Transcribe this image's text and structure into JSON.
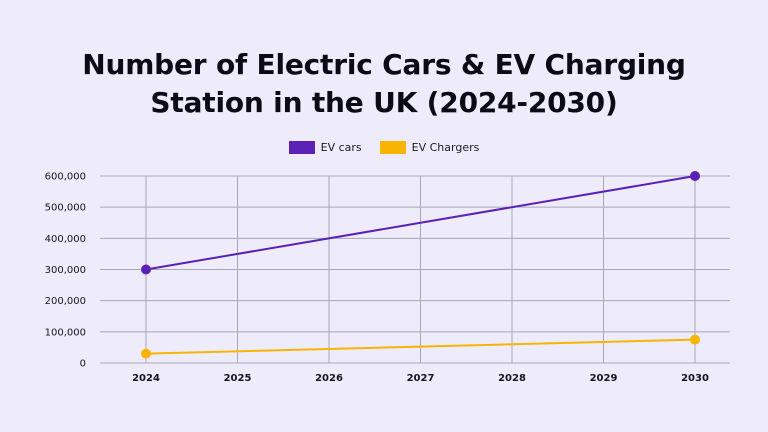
{
  "chart_data": {
    "type": "line",
    "title_lines": [
      "Number of Electric Cars & EV Charging",
      "Station in the UK (2024-2030)"
    ],
    "x": [
      "2024",
      "2025",
      "2026",
      "2027",
      "2028",
      "2029",
      "2030"
    ],
    "y_ticks": [
      "0",
      "100,000",
      "200,000",
      "300,000",
      "400,000",
      "500,000",
      "600,000"
    ],
    "ylim": [
      0,
      600000
    ],
    "grid": true,
    "legend_position": "top-center",
    "series": [
      {
        "name": "EV cars",
        "color": "#5b21b6",
        "points": [
          [
            2024,
            300000
          ],
          [
            2030,
            600000
          ]
        ]
      },
      {
        "name": "EV Chargers",
        "color": "#f8b500",
        "points": [
          [
            2024,
            30000
          ],
          [
            2030,
            75000
          ]
        ]
      }
    ]
  }
}
